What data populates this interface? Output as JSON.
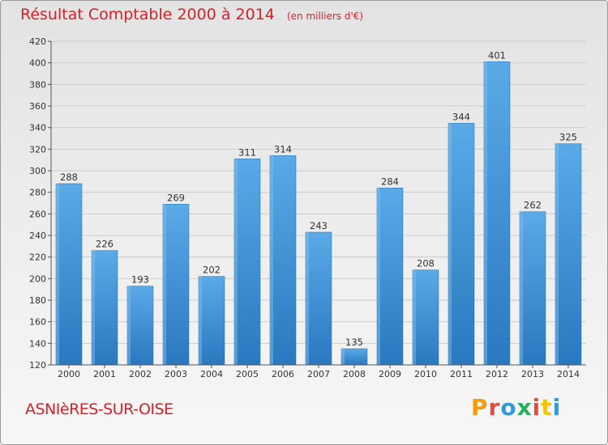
{
  "header": {
    "title": "Résultat Comptable 2000 à 2014",
    "subtitle": "(en milliers d'€)"
  },
  "footer": {
    "city": "ASNIèRES-SUR-OISE",
    "logo_text": "Proxiti",
    "logo_colors": [
      "#f39c12",
      "#e74c3c",
      "#3498db",
      "#27ae60",
      "#e74c3c",
      "#f1c40f",
      "#3498db"
    ]
  },
  "colors": {
    "bar": "#4f9fde",
    "bar_dark": "#2f7fc4",
    "grid": "#cccccc",
    "text": "#333333",
    "accent": "#d2232a"
  },
  "chart_data": {
    "type": "bar",
    "categories": [
      "2000",
      "2001",
      "2002",
      "2003",
      "2004",
      "2005",
      "2006",
      "2007",
      "2008",
      "2009",
      "2010",
      "2011",
      "2012",
      "2013",
      "2014"
    ],
    "values": [
      288,
      226,
      193,
      269,
      202,
      311,
      314,
      243,
      135,
      284,
      208,
      344,
      401,
      262,
      325
    ],
    "title": "Résultat Comptable 2000 à 2014",
    "xlabel": "",
    "ylabel": "",
    "ylim": [
      120,
      420
    ],
    "yticks": [
      120,
      140,
      160,
      180,
      200,
      220,
      240,
      260,
      280,
      300,
      320,
      340,
      360,
      380,
      400,
      420
    ],
    "grid": true,
    "data_labels": true
  }
}
